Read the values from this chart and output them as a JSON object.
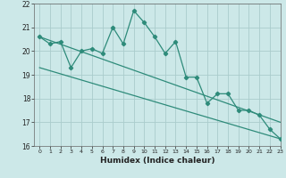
{
  "x": [
    0,
    1,
    2,
    3,
    4,
    5,
    6,
    7,
    8,
    9,
    10,
    11,
    12,
    13,
    14,
    15,
    16,
    17,
    18,
    19,
    20,
    21,
    22,
    23
  ],
  "y_main": [
    20.6,
    20.3,
    20.4,
    19.3,
    20.0,
    20.1,
    19.9,
    21.0,
    20.3,
    21.7,
    21.2,
    20.6,
    19.9,
    20.4,
    18.9,
    18.9,
    17.8,
    18.2,
    18.2,
    17.5,
    17.5,
    17.3,
    16.7,
    16.3
  ],
  "trend1_start": 20.6,
  "trend1_end": 17.0,
  "trend2_start": 19.3,
  "trend2_end": 16.3,
  "line_color": "#2e8b7a",
  "bg_color": "#cce8e8",
  "grid_color": "#aacccc",
  "xlabel": "Humidex (Indice chaleur)",
  "ylim": [
    16,
    22
  ],
  "xlim": [
    -0.5,
    23
  ],
  "yticks": [
    16,
    17,
    18,
    19,
    20,
    21,
    22
  ],
  "xticks": [
    0,
    1,
    2,
    3,
    4,
    5,
    6,
    7,
    8,
    9,
    10,
    11,
    12,
    13,
    14,
    15,
    16,
    17,
    18,
    19,
    20,
    21,
    22,
    23
  ]
}
